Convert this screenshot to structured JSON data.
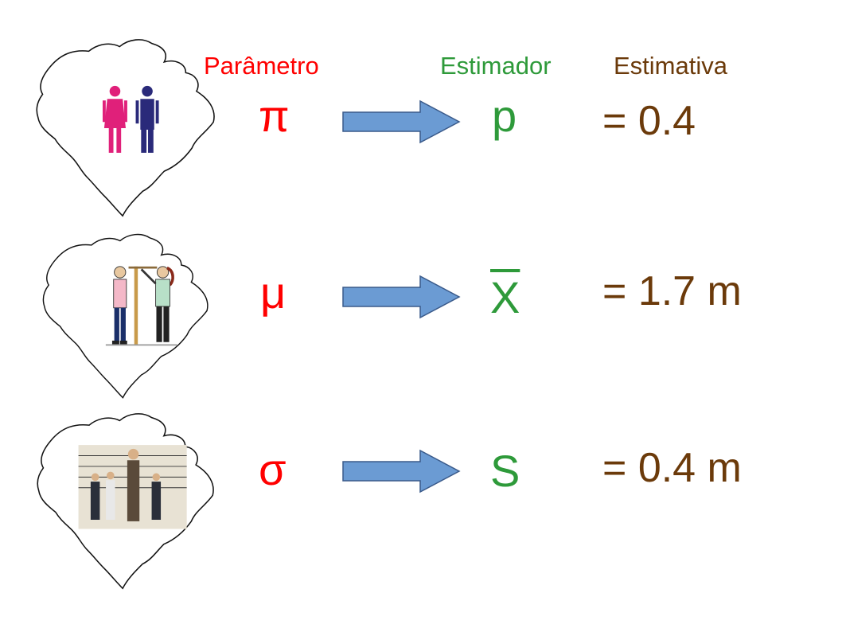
{
  "headers": {
    "parameter": "Parâmetro",
    "estimator": "Estimador",
    "estimate": "Estimativa"
  },
  "rows": [
    {
      "parameter": "π",
      "estimator": "p",
      "estimate": "= 0.4",
      "illustration": "brazil-map-with-man-woman-icons"
    },
    {
      "parameter": "μ",
      "estimator": "X",
      "estimate": "= 1.7 m",
      "illustration": "brazil-map-with-height-measurement"
    },
    {
      "parameter": "σ",
      "estimator": "S",
      "estimate": "= 0.4 m",
      "illustration": "brazil-map-with-height-lineup"
    }
  ],
  "colors": {
    "parameter": "#ff0000",
    "estimator": "#2e9a3a",
    "estimate": "#6b3a0a",
    "arrow": "#6b9bd3"
  }
}
